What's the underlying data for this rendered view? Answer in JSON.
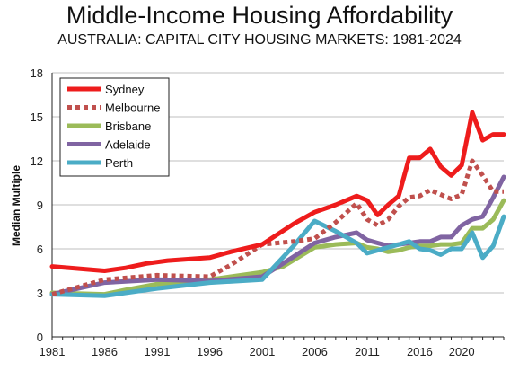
{
  "chart_data": {
    "type": "line",
    "title": "Middle-Income Housing Affordability",
    "subtitle": "AUSTRALIA: CAPITAL CITY HOUSING MARKETS: 1981-2024",
    "xlabel": "",
    "ylabel": "Median Multiple",
    "ylim": [
      0,
      18
    ],
    "yticks": [
      0,
      3,
      6,
      9,
      12,
      15,
      18
    ],
    "xlim": [
      1981,
      2024
    ],
    "xticks": [
      1981,
      1986,
      1991,
      1996,
      2001,
      2006,
      2011,
      2016,
      2020
    ],
    "legend_position": "top-left",
    "grid": "horizontal",
    "series": [
      {
        "name": "Sydney",
        "color": "#ee1c1c",
        "style": "solid",
        "x": [
          1981,
          1986,
          1988,
          1990,
          1992,
          1996,
          1998,
          2001,
          2004,
          2006,
          2008,
          2010,
          2011,
          2012,
          2013,
          2014,
          2015,
          2016,
          2017,
          2018,
          2019,
          2020,
          2021,
          2022,
          2023,
          2024
        ],
        "values": [
          4.8,
          4.5,
          4.7,
          5.0,
          5.2,
          5.4,
          5.8,
          6.3,
          7.7,
          8.5,
          9.0,
          9.6,
          9.3,
          8.3,
          9.0,
          9.6,
          12.2,
          12.2,
          12.8,
          11.6,
          11.0,
          11.7,
          15.3,
          13.4,
          13.8,
          13.8
        ]
      },
      {
        "name": "Melbourne",
        "color": "#c0504d",
        "style": "dotted",
        "x": [
          1981,
          1986,
          1991,
          1996,
          1998,
          2001,
          2004,
          2006,
          2008,
          2010,
          2011,
          2012,
          2013,
          2014,
          2015,
          2016,
          2017,
          2018,
          2019,
          2020,
          2021,
          2022,
          2023,
          2024
        ],
        "values": [
          2.9,
          3.9,
          4.2,
          4.1,
          4.9,
          6.3,
          6.5,
          6.7,
          7.8,
          9.1,
          8.0,
          7.6,
          8.0,
          8.9,
          9.5,
          9.6,
          10.0,
          9.7,
          9.4,
          9.7,
          12.0,
          11.0,
          9.9,
          9.9
        ]
      },
      {
        "name": "Brisbane",
        "color": "#9bbb59",
        "style": "solid",
        "x": [
          1981,
          1986,
          1988,
          1991,
          1996,
          2001,
          2003,
          2006,
          2008,
          2010,
          2011,
          2012,
          2013,
          2014,
          2015,
          2016,
          2017,
          2018,
          2019,
          2020,
          2021,
          2022,
          2023,
          2024
        ],
        "values": [
          3.0,
          2.9,
          3.2,
          3.6,
          3.9,
          4.4,
          4.8,
          6.1,
          6.3,
          6.4,
          6.1,
          6.0,
          5.8,
          5.9,
          6.1,
          6.2,
          6.2,
          6.3,
          6.3,
          6.4,
          7.4,
          7.4,
          8.0,
          9.3
        ]
      },
      {
        "name": "Adelaide",
        "color": "#8064a2",
        "style": "solid",
        "x": [
          1981,
          1986,
          1991,
          1996,
          2001,
          2003,
          2006,
          2008,
          2010,
          2011,
          2012,
          2013,
          2014,
          2015,
          2016,
          2017,
          2018,
          2019,
          2020,
          2021,
          2022,
          2023,
          2024
        ],
        "values": [
          2.9,
          3.7,
          3.9,
          3.8,
          4.1,
          5.0,
          6.4,
          6.8,
          7.1,
          6.6,
          6.4,
          6.2,
          6.3,
          6.4,
          6.5,
          6.5,
          6.8,
          6.8,
          7.6,
          8.0,
          8.2,
          9.5,
          10.9
        ]
      },
      {
        "name": "Perth",
        "color": "#4bacc6",
        "style": "solid",
        "x": [
          1981,
          1986,
          1988,
          1991,
          1996,
          2001,
          2004,
          2006,
          2008,
          2010,
          2011,
          2012,
          2013,
          2014,
          2015,
          2016,
          2017,
          2018,
          2019,
          2020,
          2021,
          2022,
          2023,
          2024
        ],
        "values": [
          2.9,
          2.8,
          3.0,
          3.3,
          3.7,
          3.9,
          6.2,
          7.9,
          7.2,
          6.4,
          5.7,
          5.9,
          6.1,
          6.3,
          6.5,
          6.0,
          5.9,
          5.6,
          6.0,
          6.0,
          7.1,
          5.4,
          6.2,
          8.2
        ]
      }
    ]
  }
}
